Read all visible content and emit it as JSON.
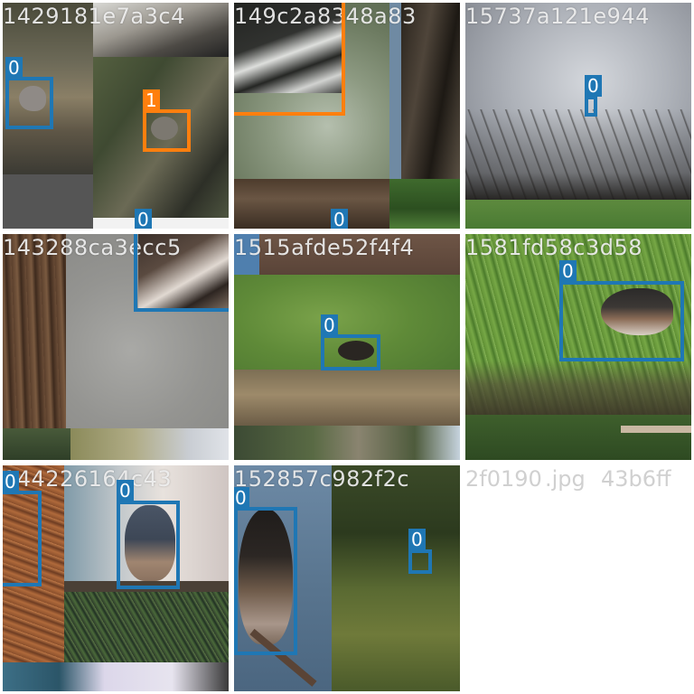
{
  "tiles": [
    {
      "title": "1429181e7a3c4",
      "labels": [
        "0",
        "1",
        "0"
      ]
    },
    {
      "title": "149c2a8348a83",
      "labels": [
        "0"
      ]
    },
    {
      "title": "15737a121e944",
      "labels": [
        "0"
      ]
    },
    {
      "title": "143288ca3ecc5",
      "labels": []
    },
    {
      "title": "1515afde52f4f4",
      "labels": [
        "0"
      ]
    },
    {
      "title": "1581fd58c3d58",
      "labels": [
        "0"
      ]
    },
    {
      "title": "144226164c43",
      "labels": [
        "0",
        "0"
      ]
    },
    {
      "title": "152857c982f2c",
      "labels": [
        "0",
        "0"
      ]
    }
  ],
  "ghost_titles": [
    "2f0190",
    ".jpg",
    "43b6ff"
  ],
  "colors": {
    "class_0": "#1f77b4",
    "class_1": "#ff7f0e"
  }
}
